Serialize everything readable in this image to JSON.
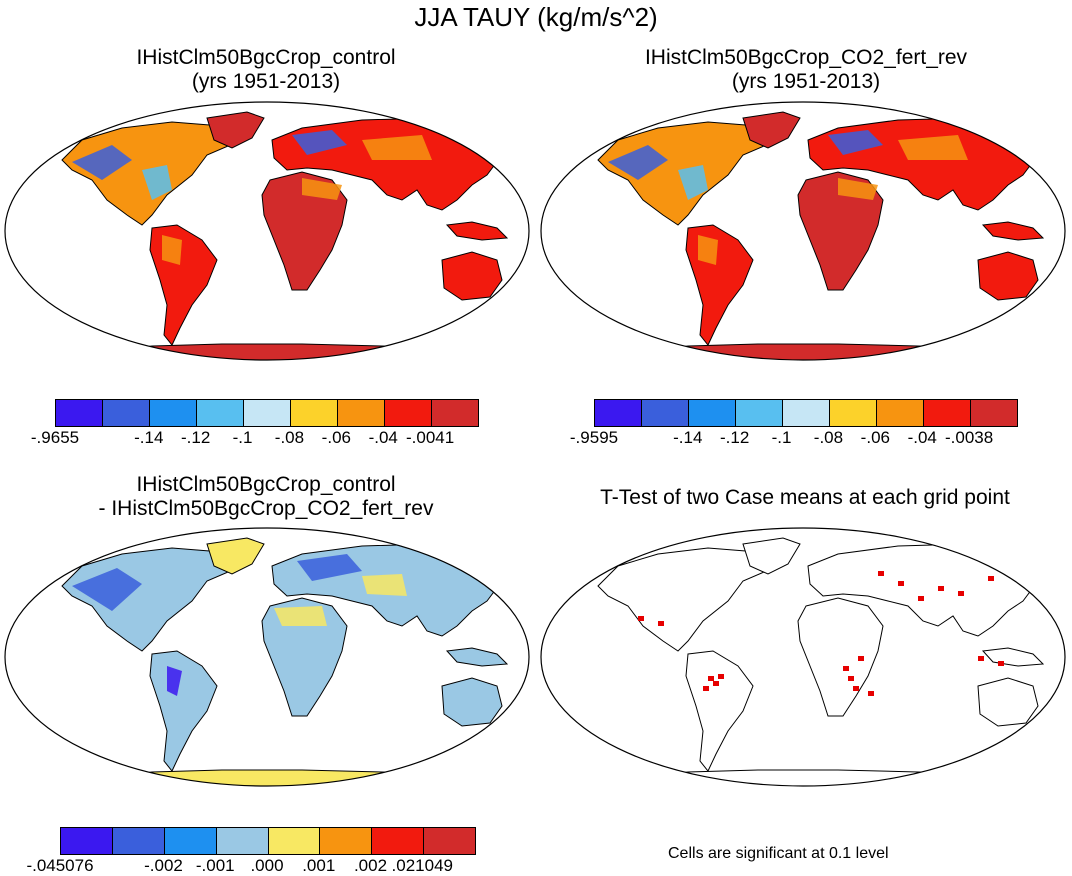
{
  "main_title": "JJA TAUY (kg/m/s^2)",
  "colors": {
    "main": [
      "#3b18f0",
      "#3a5fdc",
      "#1e90f0",
      "#58bff0",
      "#c6e6f5",
      "#fcd22a",
      "#f79410",
      "#f21a0e",
      "#d22b2b"
    ],
    "diff": [
      "#3b18f0",
      "#3a5fdc",
      "#1e90f0",
      "#9ac8e4",
      "#f8e863",
      "#f79410",
      "#f21a0e",
      "#d22b2b"
    ],
    "signif": "#e60000",
    "ocean": "#ffffff",
    "coast": "#000000"
  },
  "panels": [
    {
      "title_line1": "IHistClm50BgcCrop_control",
      "title_line2": "(yrs 1951-2013)",
      "colorbar_labels": [
        "-.9655",
        "-.14",
        "-.12",
        "-.1",
        "-.08",
        "-.06",
        "-.04",
        "-.0041"
      ],
      "dominant_fill": "red"
    },
    {
      "title_line1": "IHistClm50BgcCrop_CO2_fert_rev",
      "title_line2": "(yrs 1951-2013)",
      "colorbar_labels": [
        "-.9595",
        "-.14",
        "-.12",
        "-.1",
        "-.08",
        "-.06",
        "-.04",
        "-.0038"
      ],
      "dominant_fill": "red"
    },
    {
      "title_line1": "IHistClm50BgcCrop_control",
      "title_line2": "- IHistClm50BgcCrop_CO2_fert_rev",
      "colorbar_labels": [
        "-.045076",
        "-.002",
        "-.001",
        ".000",
        ".001",
        ".002",
        ".021049"
      ],
      "dominant_fill": "light-blue"
    },
    {
      "title_line1": "T-Test of two Case means at each grid point",
      "title_line2": "",
      "footnote": "Cells are significant at 0.1 level",
      "dominant_fill": "white"
    }
  ]
}
